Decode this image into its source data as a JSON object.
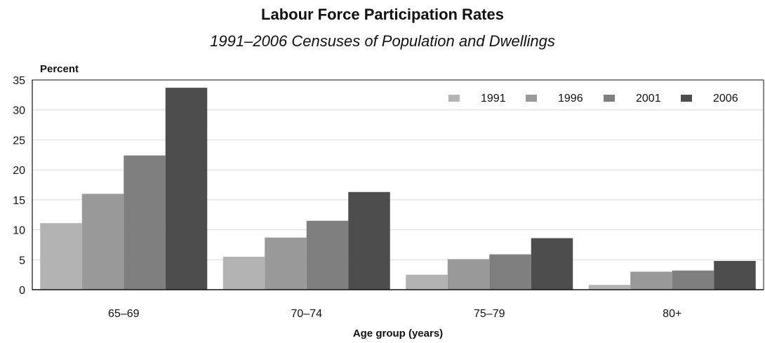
{
  "chart_data": {
    "type": "bar",
    "title": "Labour Force Participation Rates",
    "subtitle": "1991–2006 Censuses of Population and Dwellings",
    "ylabel": "Percent",
    "xlabel": "Age group (years)",
    "ylim": [
      0,
      35
    ],
    "yticks": [
      0,
      5,
      10,
      15,
      20,
      25,
      30,
      35
    ],
    "grid": true,
    "legend_position": "top-right",
    "categories": [
      "65–69",
      "70–74",
      "75–79",
      "80+"
    ],
    "series": [
      {
        "name": "1991",
        "color": "#b3b3b3",
        "values": [
          11.1,
          5.5,
          2.5,
          0.8
        ]
      },
      {
        "name": "1996",
        "color": "#999999",
        "values": [
          16.0,
          8.7,
          5.1,
          3.0
        ]
      },
      {
        "name": "2001",
        "color": "#7f7f7f",
        "values": [
          22.4,
          11.5,
          5.9,
          3.2
        ]
      },
      {
        "name": "2006",
        "color": "#4d4d4d",
        "values": [
          33.7,
          16.3,
          8.6,
          4.8
        ]
      }
    ]
  }
}
